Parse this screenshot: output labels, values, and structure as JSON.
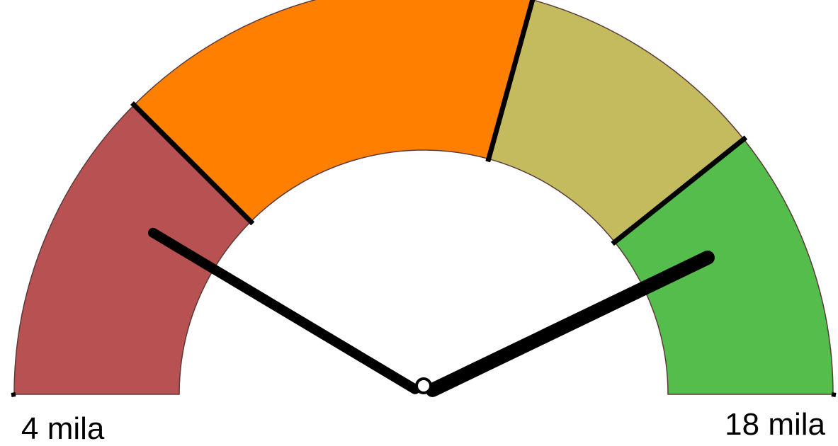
{
  "chart_data": {
    "type": "gauge",
    "xlim": [
      4,
      18
    ],
    "xticks": [
      {
        "value": 4,
        "label": "4 mila"
      },
      {
        "value": 18,
        "label": "18 mila"
      }
    ],
    "bands": [
      {
        "to": 7.5,
        "color": "#b85151"
      },
      {
        "to": 12.2,
        "color": "#ff8000"
      },
      {
        "to": 15,
        "color": "#c3bb5d"
      },
      {
        "to": 18,
        "color": "#55bd4c"
      }
    ],
    "values": [
      6.4,
      16
    ],
    "needle_color": "#000000"
  }
}
